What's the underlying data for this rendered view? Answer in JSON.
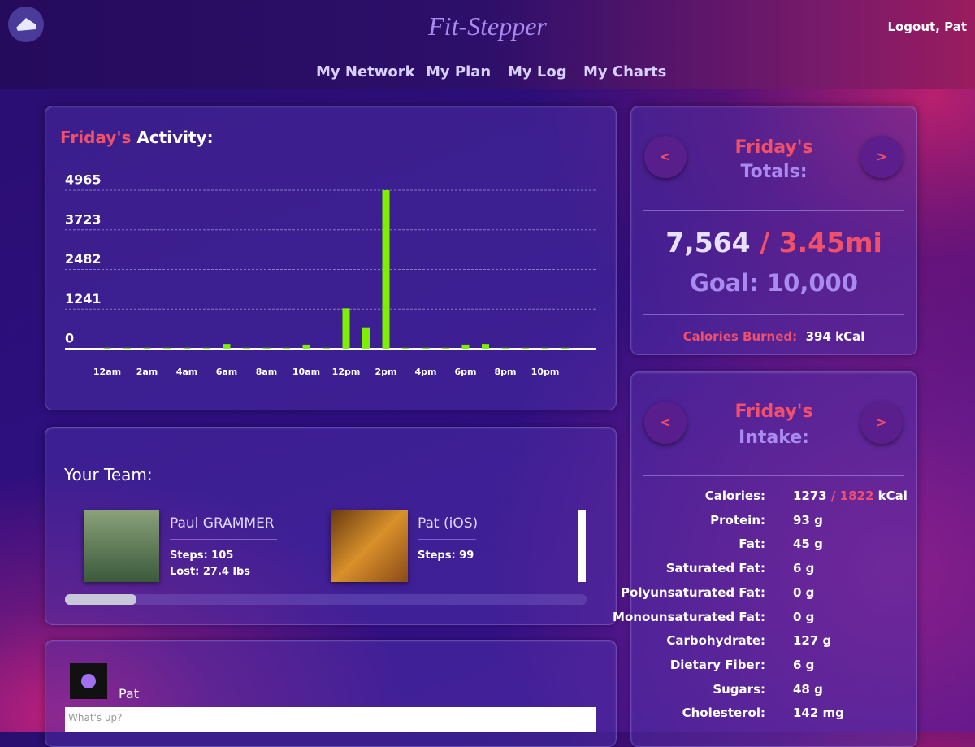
{
  "header": {
    "title": "Fit-Stepper",
    "logout": "Logout, Pat"
  },
  "nav": [
    "My Network",
    "My Plan",
    "My Log",
    "My Charts"
  ],
  "activity": {
    "title_day": "Friday's",
    "title_rest": "Activity:",
    "chart": {
      "type": "bar",
      "categories": [
        "12am",
        null,
        "2am",
        null,
        "4am",
        null,
        "6am",
        null,
        "8am",
        null,
        "10am",
        null,
        "12pm",
        null,
        "2pm",
        null,
        "4pm",
        null,
        "6pm",
        null,
        "8pm",
        null,
        "10pm",
        null
      ],
      "values": [
        30,
        30,
        30,
        30,
        30,
        30,
        150,
        30,
        30,
        30,
        130,
        30,
        1265,
        670,
        4965,
        30,
        30,
        30,
        130,
        150,
        30,
        30,
        30,
        30
      ],
      "color": "#7cf000",
      "ylim": [
        0,
        4965
      ],
      "yticks": [
        0,
        1241,
        2482,
        3723,
        4965
      ],
      "grid": true
    }
  },
  "totals": {
    "day": "Friday's",
    "label": "Totals:",
    "steps": "7,564",
    "distance": "/ 3.45mi",
    "goal": "Goal: 10,000",
    "calories_label": "Calories Burned:",
    "calories_value": "394 kCal",
    "prev": "<",
    "next": ">"
  },
  "team": {
    "title": "Your Team:",
    "members": [
      {
        "name": "Paul GRAMMER",
        "stats": [
          "Steps: 105",
          "Lost: 27.4 lbs"
        ]
      },
      {
        "name": "Pat (iOS)",
        "stats": [
          "Steps: 99"
        ]
      }
    ]
  },
  "post": {
    "user": "Pat",
    "placeholder": "What's up?"
  },
  "intake": {
    "day": "Friday's",
    "label": "Intake:",
    "prev": "<",
    "next": ">",
    "rows": [
      [
        "Calories:",
        "1273",
        "/ 1822",
        "kCal"
      ],
      [
        "Protein:",
        "93 g"
      ],
      [
        "Fat:",
        "45 g"
      ],
      [
        "Saturated Fat:",
        "6 g"
      ],
      [
        "Polyunsaturated Fat:",
        "0 g"
      ],
      [
        "Monounsaturated Fat:",
        "0 g"
      ],
      [
        "Carbohydrate:",
        "127 g"
      ],
      [
        "Dietary Fiber:",
        "6 g"
      ],
      [
        "Sugars:",
        "48 g"
      ],
      [
        "Cholesterol:",
        "142 mg"
      ]
    ]
  }
}
